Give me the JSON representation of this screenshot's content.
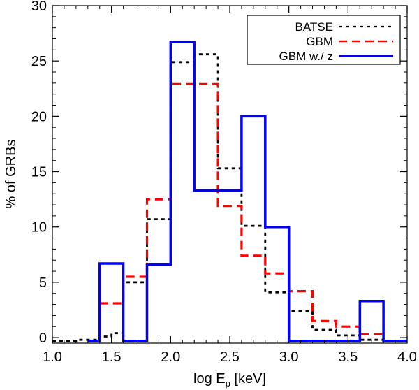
{
  "chart_data": {
    "type": "histogram",
    "xlabel": "log E",
    "xlabel_sub": "p",
    "xlabel_unit": " [keV]",
    "ylabel": "% of GRBs",
    "xlim": [
      1.0,
      4.0
    ],
    "ylim": [
      -0.5,
      30
    ],
    "xticks": [
      1.0,
      1.5,
      2.0,
      2.5,
      3.0,
      3.5,
      4.0
    ],
    "xtick_labels": [
      "1.0",
      "1.5",
      "2.0",
      "2.5",
      "3.0",
      "3.5",
      "4.0"
    ],
    "yticks": [
      0,
      5,
      10,
      15,
      20,
      25,
      30
    ],
    "ytick_labels": [
      "0",
      "5",
      "10",
      "15",
      "20",
      "25",
      "30"
    ],
    "legend_position": "top-right",
    "series": [
      {
        "name": "BATSE",
        "color": "#000000",
        "dash": "short-dash",
        "bin_edges": [
          1.0,
          1.2,
          1.4,
          1.5,
          1.6,
          1.8,
          2.0,
          2.2,
          2.4,
          2.6,
          2.8,
          3.0,
          3.2,
          3.4,
          3.6,
          3.8,
          4.0
        ],
        "values": [
          -0.3,
          -0.2,
          0.1,
          0.4,
          5.0,
          10.7,
          24.9,
          25.6,
          15.3,
          10.1,
          4.1,
          2.4,
          0.7,
          0.2,
          -0.2,
          -0.3
        ]
      },
      {
        "name": "GBM",
        "color": "#ff0000",
        "dash": "long-dash",
        "bin_edges": [
          1.4,
          1.6,
          1.8,
          2.0,
          2.2,
          2.4,
          2.6,
          2.8,
          3.0,
          3.2,
          3.4,
          3.6,
          3.8,
          4.0
        ],
        "values": [
          3.1,
          5.5,
          12.5,
          22.9,
          22.9,
          11.9,
          7.4,
          5.8,
          4.2,
          1.5,
          1.0,
          0.3,
          -0.3
        ]
      },
      {
        "name": "GBM w./ z",
        "color": "#0000ff",
        "dash": "solid",
        "bin_edges": [
          1.3,
          1.4,
          1.6,
          1.8,
          2.0,
          2.2,
          2.4,
          2.6,
          2.8,
          3.0,
          3.2,
          3.4,
          3.6,
          3.8,
          4.0
        ],
        "values": [
          -0.3,
          6.7,
          -0.3,
          6.6,
          26.7,
          13.3,
          13.3,
          20.0,
          10.0,
          -0.3,
          -0.3,
          -0.3,
          3.3,
          -0.3
        ]
      }
    ]
  }
}
